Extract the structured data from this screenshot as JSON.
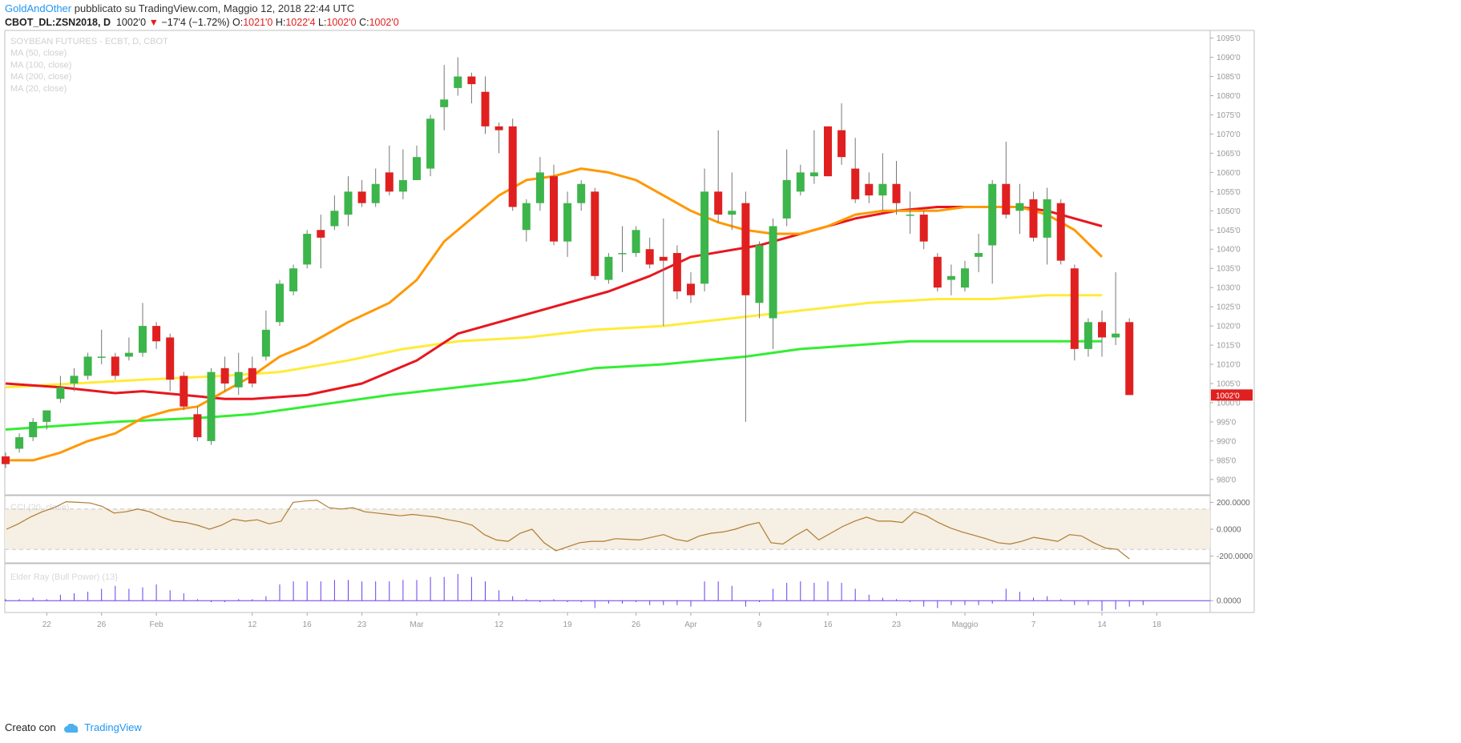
{
  "header": {
    "author": "GoldAndOther",
    "published": "pubblicato su TradingView.com, Maggio 12, 2018 22:44 UTC",
    "symbol": "CBOT_DL:ZSN2018, D",
    "last": "1002'0",
    "change": "−17'4 (−1.72%)",
    "open_label": "O:",
    "open": "1021'0",
    "high_label": "H:",
    "high": "1022'4",
    "low_label": "L:",
    "low": "1002'0",
    "close_label": "C:",
    "close": "1002'0"
  },
  "footer": {
    "created_with": "Creato con",
    "brand": "TradingView"
  },
  "colors": {
    "up": "#3cb54a",
    "down": "#e02020",
    "wick": "#777777",
    "ma50": "#e8161e",
    "ma100": "#ffeb3b",
    "ma200": "#33ee33",
    "ma20": "#ff9800",
    "cci_line": "#b07c30",
    "cci_band": "#f5efe4",
    "bull": "#6a3cf0",
    "last_price_bg": "#e02020"
  },
  "chart_data": [
    {
      "type": "candlestick",
      "legend": [
        "SOYBEAN FUTURES - ECBT, D, CBOT",
        "MA (50, close)",
        "MA (100, close)",
        "MA (200, close)",
        "MA (20, close)"
      ],
      "ylim": [
        976,
        1097
      ],
      "y_ticks": [
        980,
        985,
        990,
        995,
        1000,
        1005,
        1010,
        1015,
        1020,
        1025,
        1030,
        1035,
        1040,
        1045,
        1050,
        1055,
        1060,
        1065,
        1070,
        1075,
        1080,
        1085,
        1090,
        1095
      ],
      "y_tick_labels": [
        "980'0",
        "985'0",
        "990'0",
        "995'0",
        "1000'0",
        "1005'0",
        "1010'0",
        "1015'0",
        "1020'0",
        "1025'0",
        "1030'0",
        "1035'0",
        "1040'0",
        "1045'0",
        "1050'0",
        "1055'0",
        "1060'0",
        "1065'0",
        "1070'0",
        "1075'0",
        "1080'0",
        "1085'0",
        "1090'0",
        "1095'0"
      ],
      "last_price_label": "1002'0",
      "last_price": 1002,
      "x_ticks": [
        {
          "label": "22",
          "at": 3
        },
        {
          "label": "26",
          "at": 7
        },
        {
          "label": "Feb",
          "at": 11
        },
        {
          "label": "12",
          "at": 18
        },
        {
          "label": "16",
          "at": 22
        },
        {
          "label": "23",
          "at": 26
        },
        {
          "label": "Mar",
          "at": 30
        },
        {
          "label": "12",
          "at": 36
        },
        {
          "label": "19",
          "at": 41
        },
        {
          "label": "26",
          "at": 46
        },
        {
          "label": "Apr",
          "at": 50
        },
        {
          "label": "9",
          "at": 55
        },
        {
          "label": "16",
          "at": 60
        },
        {
          "label": "23",
          "at": 65
        },
        {
          "label": "Maggio",
          "at": 70
        },
        {
          "label": "7",
          "at": 75
        },
        {
          "label": "14",
          "at": 80
        },
        {
          "label": "18",
          "at": 84
        }
      ],
      "candles": [
        [
          986,
          984,
          987,
          983
        ],
        [
          988,
          991,
          992,
          987
        ],
        [
          991,
          995,
          996,
          990
        ],
        [
          995,
          998,
          998,
          993
        ],
        [
          1001,
          1004,
          1007,
          1000
        ],
        [
          1005,
          1007,
          1009,
          1003
        ],
        [
          1007,
          1012,
          1013,
          1006
        ],
        [
          1012,
          1012,
          1019,
          1010
        ],
        [
          1012,
          1007,
          1013,
          1006
        ],
        [
          1012,
          1013,
          1017,
          1011
        ],
        [
          1013,
          1020,
          1026,
          1012
        ],
        [
          1020,
          1016,
          1021,
          1014
        ],
        [
          1017,
          1006,
          1018,
          1003
        ],
        [
          1007,
          999,
          1008,
          998
        ],
        [
          997,
          991,
          999,
          990
        ],
        [
          990,
          1008,
          1009,
          989
        ],
        [
          1009,
          1005,
          1012,
          1003
        ],
        [
          1004,
          1008,
          1013,
          1002
        ],
        [
          1009,
          1005,
          1012,
          1004
        ],
        [
          1012,
          1019,
          1024,
          1011
        ],
        [
          1021,
          1031,
          1032,
          1020
        ],
        [
          1029,
          1035,
          1036,
          1028
        ],
        [
          1036,
          1044,
          1045,
          1035
        ],
        [
          1045,
          1043,
          1049,
          1035
        ],
        [
          1046,
          1050,
          1054,
          1045
        ],
        [
          1049,
          1055,
          1059,
          1046
        ],
        [
          1055,
          1052,
          1058,
          1051
        ],
        [
          1052,
          1057,
          1061,
          1051
        ],
        [
          1060,
          1055,
          1067,
          1054
        ],
        [
          1055,
          1058,
          1066,
          1053
        ],
        [
          1058,
          1064,
          1067,
          1058
        ],
        [
          1061,
          1074,
          1075,
          1059
        ],
        [
          1077,
          1079,
          1088,
          1071
        ],
        [
          1082,
          1085,
          1090,
          1080
        ],
        [
          1085,
          1083,
          1086,
          1078
        ],
        [
          1081,
          1072,
          1085,
          1070
        ],
        [
          1072,
          1071,
          1073,
          1065
        ],
        [
          1072,
          1051,
          1074,
          1050
        ],
        [
          1045,
          1052,
          1053,
          1042
        ],
        [
          1052,
          1060,
          1064,
          1050
        ],
        [
          1059,
          1042,
          1062,
          1041
        ],
        [
          1042,
          1052,
          1055,
          1038
        ],
        [
          1052,
          1057,
          1058,
          1050
        ],
        [
          1055,
          1033,
          1056,
          1032
        ],
        [
          1032,
          1038,
          1039,
          1031
        ],
        [
          1039,
          1039,
          1046,
          1034
        ],
        [
          1039,
          1045,
          1046,
          1038
        ],
        [
          1040,
          1036,
          1043,
          1035
        ],
        [
          1038,
          1037,
          1048,
          1020
        ],
        [
          1039,
          1029,
          1041,
          1027
        ],
        [
          1031,
          1028,
          1034,
          1026
        ],
        [
          1031,
          1055,
          1061,
          1029
        ],
        [
          1055,
          1049,
          1071,
          1047
        ],
        [
          1049,
          1050,
          1060,
          1045
        ],
        [
          1052,
          1028,
          1055,
          995
        ],
        [
          1026,
          1041,
          1042,
          1022
        ],
        [
          1022,
          1046,
          1048,
          1014
        ],
        [
          1048,
          1058,
          1066,
          1046
        ],
        [
          1055,
          1060,
          1062,
          1054
        ],
        [
          1059,
          1060,
          1071,
          1057
        ],
        [
          1072,
          1059,
          1072,
          1059
        ],
        [
          1071,
          1064,
          1078,
          1062
        ],
        [
          1061,
          1053,
          1069,
          1052
        ],
        [
          1057,
          1054,
          1060,
          1052
        ],
        [
          1054,
          1057,
          1065,
          1050
        ],
        [
          1057,
          1052,
          1063,
          1049
        ],
        [
          1049,
          1049,
          1055,
          1044
        ],
        [
          1049,
          1042,
          1050,
          1040
        ],
        [
          1038,
          1030,
          1039,
          1029
        ],
        [
          1032,
          1033,
          1036,
          1028
        ],
        [
          1030,
          1035,
          1037,
          1029
        ],
        [
          1038,
          1039,
          1044,
          1034
        ],
        [
          1041,
          1057,
          1058,
          1031
        ],
        [
          1057,
          1049,
          1068,
          1048
        ],
        [
          1050,
          1052,
          1057,
          1044
        ],
        [
          1053,
          1043,
          1055,
          1042
        ],
        [
          1043,
          1053,
          1056,
          1036
        ],
        [
          1052,
          1037,
          1053,
          1036
        ],
        [
          1035,
          1014,
          1036,
          1011
        ],
        [
          1014,
          1021,
          1022,
          1012
        ],
        [
          1021,
          1017,
          1024,
          1012
        ],
        [
          1017,
          1018,
          1034,
          1015
        ],
        [
          1021,
          1002,
          1022,
          1002
        ]
      ],
      "ma50": [
        [
          0,
          1005
        ],
        [
          4,
          1004
        ],
        [
          8,
          1002.5
        ],
        [
          10,
          1003
        ],
        [
          13,
          1002
        ],
        [
          16,
          1001
        ],
        [
          18,
          1001
        ],
        [
          22,
          1002
        ],
        [
          26,
          1005
        ],
        [
          30,
          1011
        ],
        [
          33,
          1018
        ],
        [
          36,
          1021
        ],
        [
          38,
          1023
        ],
        [
          41,
          1026
        ],
        [
          44,
          1029
        ],
        [
          47,
          1033
        ],
        [
          50,
          1038
        ],
        [
          55,
          1041
        ],
        [
          59,
          1045
        ],
        [
          62,
          1048
        ],
        [
          65,
          1050
        ],
        [
          68,
          1051
        ],
        [
          71,
          1051
        ],
        [
          74,
          1051
        ],
        [
          76,
          1050
        ],
        [
          78,
          1048
        ],
        [
          80,
          1046
        ]
      ],
      "ma100": [
        [
          0,
          1004
        ],
        [
          5,
          1005
        ],
        [
          10,
          1006
        ],
        [
          16,
          1007
        ],
        [
          20,
          1008
        ],
        [
          25,
          1011
        ],
        [
          29,
          1014
        ],
        [
          33,
          1016
        ],
        [
          38,
          1017
        ],
        [
          43,
          1019
        ],
        [
          48,
          1020
        ],
        [
          53,
          1022
        ],
        [
          58,
          1024
        ],
        [
          63,
          1026
        ],
        [
          68,
          1027
        ],
        [
          72,
          1027
        ],
        [
          76,
          1028
        ],
        [
          80,
          1028
        ]
      ],
      "ma200": [
        [
          0,
          993
        ],
        [
          4,
          994
        ],
        [
          8,
          995
        ],
        [
          14,
          996
        ],
        [
          18,
          997
        ],
        [
          22,
          999
        ],
        [
          28,
          1002
        ],
        [
          33,
          1004
        ],
        [
          38,
          1006
        ],
        [
          43,
          1009
        ],
        [
          48,
          1010
        ],
        [
          54,
          1012
        ],
        [
          58,
          1014
        ],
        [
          62,
          1015
        ],
        [
          66,
          1016
        ],
        [
          70,
          1016
        ],
        [
          74,
          1016
        ],
        [
          78,
          1016
        ],
        [
          80,
          1016
        ]
      ],
      "ma20": [
        [
          0,
          985
        ],
        [
          2,
          985
        ],
        [
          4,
          987
        ],
        [
          6,
          990
        ],
        [
          8,
          992
        ],
        [
          10,
          996
        ],
        [
          12,
          998
        ],
        [
          14,
          999
        ],
        [
          16,
          1003
        ],
        [
          18,
          1007
        ],
        [
          20,
          1012
        ],
        [
          22,
          1015
        ],
        [
          25,
          1021
        ],
        [
          28,
          1026
        ],
        [
          30,
          1032
        ],
        [
          32,
          1042
        ],
        [
          34,
          1048
        ],
        [
          36,
          1054
        ],
        [
          38,
          1058
        ],
        [
          40,
          1059
        ],
        [
          42,
          1061
        ],
        [
          44,
          1060
        ],
        [
          46,
          1058
        ],
        [
          48,
          1054
        ],
        [
          50,
          1050
        ],
        [
          52,
          1047
        ],
        [
          54,
          1045
        ],
        [
          56,
          1044
        ],
        [
          58,
          1044
        ],
        [
          60,
          1046
        ],
        [
          62,
          1049
        ],
        [
          64,
          1050
        ],
        [
          66,
          1050
        ],
        [
          68,
          1050
        ],
        [
          70,
          1051
        ],
        [
          72,
          1051
        ],
        [
          74,
          1051
        ],
        [
          76,
          1049
        ],
        [
          78,
          1045
        ],
        [
          80,
          1038
        ]
      ]
    },
    {
      "type": "line",
      "legend": "CCI (20, close)",
      "ylim": [
        -250,
        250
      ],
      "y_ticks": [
        200,
        0,
        -200
      ],
      "y_tick_labels": [
        "200.0000",
        "0.0000",
        "-200.0000"
      ],
      "band": [
        -150,
        150
      ],
      "values": [
        0,
        40,
        90,
        130,
        160,
        205,
        200,
        195,
        170,
        120,
        130,
        150,
        130,
        90,
        60,
        50,
        30,
        0,
        30,
        75,
        60,
        70,
        40,
        60,
        200,
        210,
        215,
        160,
        150,
        160,
        130,
        120,
        110,
        100,
        110,
        100,
        90,
        70,
        55,
        30,
        -40,
        -80,
        -90,
        -30,
        0,
        -100,
        -160,
        -130,
        -100,
        -90,
        -90,
        -70,
        -75,
        -80,
        -60,
        -40,
        -75,
        -90,
        -50,
        -30,
        -20,
        0,
        30,
        50,
        -100,
        -110,
        -50,
        0,
        -80,
        -30,
        20,
        60,
        90,
        60,
        60,
        50,
        130,
        100,
        50,
        10,
        -20,
        -45,
        -70,
        -100,
        -110,
        -90,
        -60,
        -75,
        -90,
        -40,
        -50,
        -100,
        -140,
        -150,
        -220
      ]
    },
    {
      "type": "bar",
      "legend": "Elder Ray (Bull Power) (13)",
      "ylim": [
        -8,
        25
      ],
      "y_ticks": [
        0
      ],
      "y_tick_labels": [
        "0.0000"
      ],
      "values": [
        1,
        1,
        2,
        1,
        4,
        5,
        6,
        8,
        10,
        8,
        9,
        11,
        7,
        5,
        1,
        -1,
        -1,
        1,
        1,
        3,
        11,
        13,
        13,
        13,
        14,
        14,
        13,
        13,
        13,
        14,
        14,
        16,
        16,
        18,
        16,
        13,
        7,
        3,
        1,
        -1,
        1,
        -1,
        -1,
        -5,
        -2,
        -2,
        -1,
        -3,
        -3,
        -3,
        -4,
        13,
        13,
        10,
        -4,
        -1,
        8,
        12,
        13,
        12,
        13,
        12,
        8,
        4,
        2,
        1,
        -1,
        -4,
        -5,
        -3,
        -3,
        -3,
        -2,
        8,
        6,
        2,
        3,
        1,
        -3,
        -3,
        -7,
        -6,
        -4,
        -3
      ]
    }
  ]
}
